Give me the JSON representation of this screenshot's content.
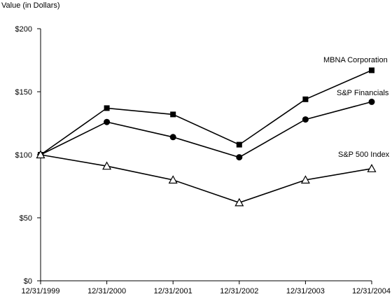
{
  "chart_data": {
    "type": "line",
    "ylabel": "Value (in Dollars)",
    "xlabel": "",
    "categories": [
      "12/31/1999",
      "12/31/2000",
      "12/31/2001",
      "12/31/2002",
      "12/31/2003",
      "12/31/2004"
    ],
    "ylim": [
      0,
      200
    ],
    "yticks": [
      0,
      50,
      100,
      150,
      200
    ],
    "ytick_labels": [
      "$0",
      "$50",
      "$100",
      "$150",
      "$200"
    ],
    "grid": false,
    "legend": "direct labels at right end of each line",
    "series": [
      {
        "name": "MBNA Corporation",
        "marker": "square",
        "values": [
          100,
          137,
          132,
          108,
          144,
          167
        ]
      },
      {
        "name": "S&P Financials",
        "marker": "circle",
        "values": [
          100,
          126,
          114,
          98,
          128,
          142
        ]
      },
      {
        "name": "S&P 500 Index",
        "marker": "triangle-open",
        "values": [
          100,
          91,
          80,
          62,
          80,
          89
        ]
      }
    ]
  }
}
